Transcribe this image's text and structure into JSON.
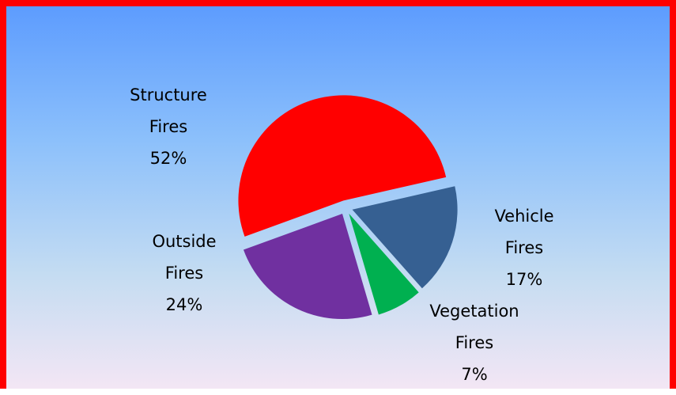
{
  "chart_data": {
    "type": "pie",
    "categories": [
      "Structure Fires",
      "Vehicle Fires",
      "Vegetation Fires",
      "Outside Fires"
    ],
    "values": [
      52,
      17,
      7,
      24
    ],
    "value_labels": [
      "52%",
      "17%",
      "7%",
      "24%"
    ],
    "colors": [
      "#ff0000",
      "#366092",
      "#00b050",
      "#7030a0"
    ]
  }
}
